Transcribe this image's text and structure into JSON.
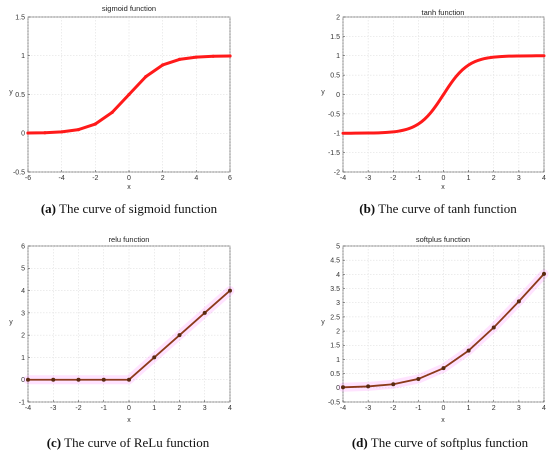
{
  "chart_data": [
    {
      "type": "line",
      "title": "sigmoid function",
      "xlabel": "x",
      "ylabel": "y",
      "xlim": [
        -6,
        6
      ],
      "ylim": [
        -0.5,
        1.5
      ],
      "xticks": [
        "-6",
        "-4",
        "-2",
        "0",
        "2",
        "4",
        "6"
      ],
      "yticks": [
        "-0.5",
        "0",
        "0.5",
        "1",
        "1.5"
      ],
      "grid": true,
      "smooth": false,
      "color": "#ff1a1a",
      "x": [
        -6,
        -5,
        -4,
        -3,
        -2,
        -1,
        0,
        1,
        2,
        3,
        4,
        5,
        6
      ],
      "y": [
        0.0025,
        0.0067,
        0.018,
        0.047,
        0.119,
        0.269,
        0.5,
        0.731,
        0.881,
        0.953,
        0.982,
        0.993,
        0.9975
      ],
      "caption_label": "(a)",
      "caption": "The curve of sigmoid function"
    },
    {
      "type": "line",
      "title": "tanh function",
      "xlabel": "x",
      "ylabel": "y",
      "xlim": [
        -4,
        4
      ],
      "ylim": [
        -2,
        2
      ],
      "xticks": [
        "-4",
        "-3",
        "-2",
        "-1",
        "0",
        "1",
        "2",
        "3",
        "4"
      ],
      "yticks": [
        "-2",
        "-1.5",
        "-1",
        "-0.5",
        "0",
        "0.5",
        "1",
        "1.5",
        "2"
      ],
      "grid": true,
      "smooth": true,
      "color": "#ff1a1a",
      "x": [
        -4,
        -3.5,
        -3,
        -2.5,
        -2,
        -1.75,
        -1.5,
        -1.25,
        -1,
        -0.75,
        -0.5,
        -0.25,
        0,
        0.25,
        0.5,
        0.75,
        1,
        1.25,
        1.5,
        1.75,
        2,
        2.5,
        3,
        3.5,
        4
      ],
      "y": [
        -0.999,
        -0.998,
        -0.995,
        -0.987,
        -0.964,
        -0.941,
        -0.905,
        -0.848,
        -0.762,
        -0.635,
        -0.462,
        -0.245,
        0,
        0.245,
        0.462,
        0.635,
        0.762,
        0.848,
        0.905,
        0.941,
        0.964,
        0.987,
        0.995,
        0.998,
        0.999
      ],
      "caption_label": "(b)",
      "caption": "The curve of tanh function"
    },
    {
      "type": "line",
      "title": "relu function",
      "xlabel": "x",
      "ylabel": "y",
      "xlim": [
        -4,
        4
      ],
      "ylim": [
        -1,
        6
      ],
      "xticks": [
        "-4",
        "-3",
        "-2",
        "-1",
        "0",
        "1",
        "2",
        "3",
        "4"
      ],
      "yticks": [
        "-1",
        "0",
        "1",
        "2",
        "3",
        "4",
        "5",
        "6"
      ],
      "grid": true,
      "smooth": false,
      "color": "#8b3a1a",
      "marker_color": "#5a2a10",
      "highlight_color": "#ff66ff",
      "x": [
        -4,
        -3,
        -2,
        -1,
        0,
        1,
        2,
        3,
        4
      ],
      "y": [
        0,
        0,
        0,
        0,
        0,
        1,
        2,
        3,
        4
      ],
      "caption_label": "(c)",
      "caption": "The curve of ReLu function"
    },
    {
      "type": "line",
      "title": "softplus function",
      "xlabel": "x",
      "ylabel": "y",
      "xlim": [
        -4,
        4
      ],
      "ylim": [
        -0.5,
        5
      ],
      "xticks": [
        "-4",
        "-3",
        "-2",
        "-1",
        "0",
        "1",
        "2",
        "3",
        "4"
      ],
      "yticks": [
        "-0.5",
        "0",
        "0.5",
        "1",
        "1.5",
        "2",
        "2.5",
        "3",
        "3.5",
        "4",
        "4.5",
        "5"
      ],
      "grid": true,
      "smooth": false,
      "color": "#8b3a1a",
      "marker_color": "#5a2a10",
      "highlight_color": "#ff66ff",
      "x": [
        -4,
        -3,
        -2,
        -1,
        0,
        1,
        2,
        3,
        4
      ],
      "y": [
        0.018,
        0.049,
        0.127,
        0.313,
        0.693,
        1.313,
        2.127,
        3.049,
        4.018
      ],
      "caption_label": "(d)",
      "caption": "The curve of softplus function"
    }
  ]
}
